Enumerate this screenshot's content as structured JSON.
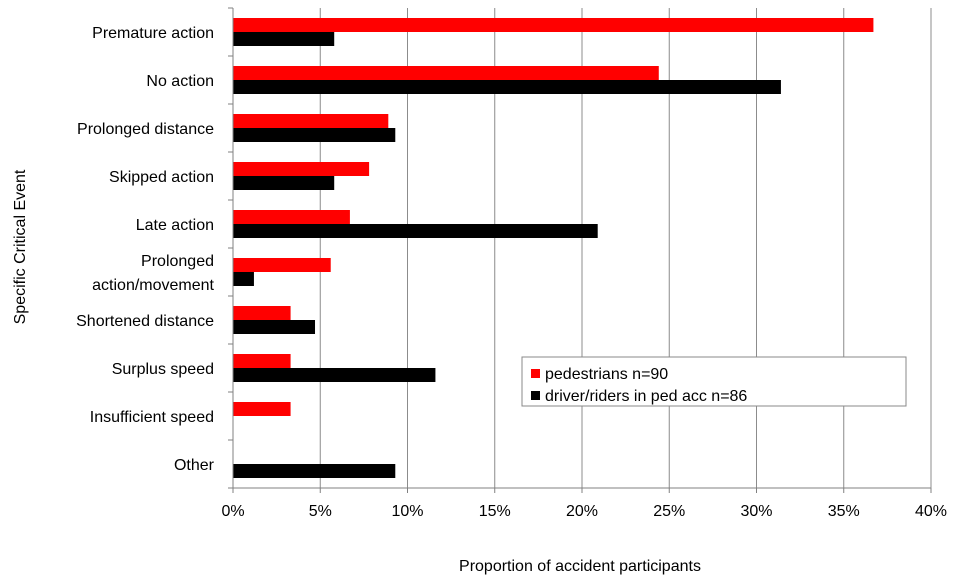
{
  "chart_data": {
    "type": "bar",
    "orientation": "horizontal",
    "title": "",
    "xlabel": "Proportion of accident participants",
    "ylabel": "Specific Critical Event",
    "xlim": [
      0,
      40
    ],
    "x_ticks": [
      "0%",
      "5%",
      "10%",
      "15%",
      "20%",
      "25%",
      "30%",
      "35%",
      "40%"
    ],
    "grid": "vertical",
    "legend_position": "right-lower",
    "categories": [
      [
        "Premature action"
      ],
      [
        "No action"
      ],
      [
        "Prolonged distance"
      ],
      [
        "Skipped action"
      ],
      [
        "Late action"
      ],
      [
        "Prolonged",
        "action/movement"
      ],
      [
        "Shortened distance"
      ],
      [
        "Surplus speed"
      ],
      [
        "Insufficient speed"
      ],
      [
        "Other"
      ]
    ],
    "series": [
      {
        "name": "pedestrians  n=90",
        "color": "#ff0000",
        "values": [
          36.7,
          24.4,
          8.9,
          7.8,
          6.7,
          5.6,
          3.3,
          3.3,
          3.3,
          0
        ]
      },
      {
        "name": "driver/riders in ped acc  n=86",
        "color": "#000000",
        "values": [
          5.8,
          31.4,
          9.3,
          5.8,
          20.9,
          1.2,
          4.7,
          11.6,
          0,
          9.3
        ]
      }
    ]
  }
}
